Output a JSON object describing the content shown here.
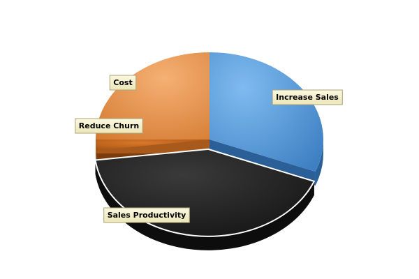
{
  "chart_data": {
    "type": "pie",
    "style": "3d",
    "start_angle_deg": 0,
    "direction": "clockwise",
    "slices": [
      {
        "label": "Increase Sales",
        "value": 31,
        "color": "#5b9bd5",
        "exploded": false
      },
      {
        "label": "Sales Productivity",
        "value": 42,
        "color": "#222222",
        "exploded": true
      },
      {
        "label": "Reduce Churn",
        "value": 2,
        "color": "#c0661e",
        "exploded": false
      },
      {
        "label": "Cost",
        "value": 25,
        "color": "#ed9a55",
        "exploded": false
      }
    ],
    "legend": "none",
    "label_style": "callout boxes"
  }
}
